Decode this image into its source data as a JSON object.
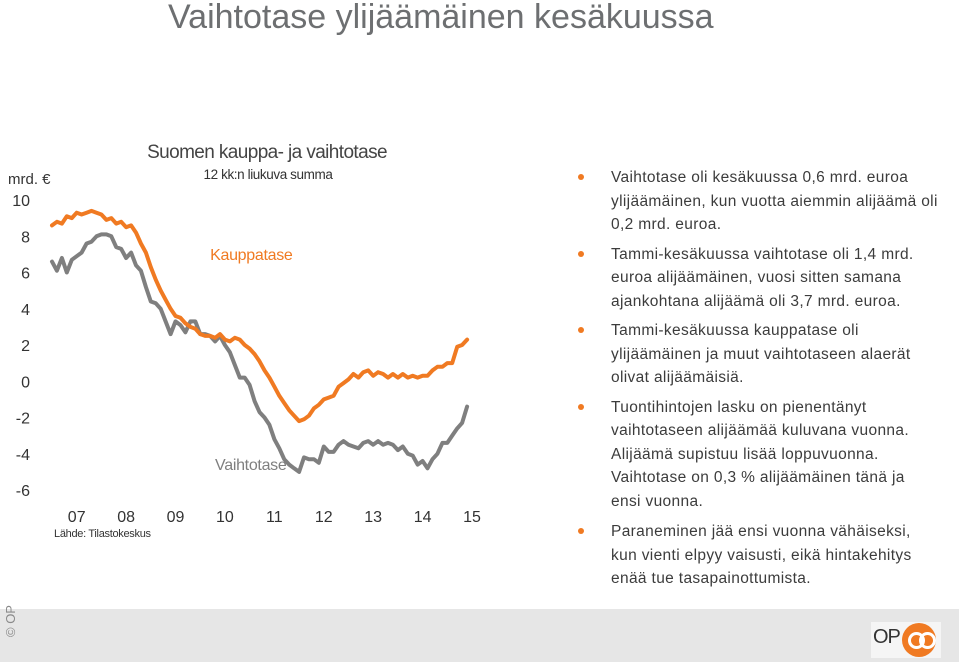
{
  "slide": {
    "title": "Vaihtotase ylijäämäinen kesäkuussa",
    "bullets": [
      "Vaihtotase oli kesäkuussa 0,6 mrd. euroa ylijäämäinen, kun vuotta aiemmin alijäämä oli 0,2 mrd. euroa.",
      "Tammi-kesäkuussa vaihtotase oli 1,4 mrd. euroa alijäämäinen, vuosi sitten samana ajankohtana alijäämä oli 3,7 mrd. euroa.",
      "Tammi-kesäkuussa kauppatase oli ylijäämäinen ja muut vaihtotaseen alaerät olivat alijäämäisiä.",
      "Tuontihintojen lasku on pienentänyt vaihtotaseen alijäämää kuluvana vuonna. Alijäämä supistuu lisää loppuvuonna. Vaihtotase on 0,3 % alijäämäinen tänä ja ensi vuonna.",
      "Paraneminen jää ensi vuonna vähäiseksi, kun vienti elpyy vaisusti, eikä hintakehitys enää tue tasapainottumista."
    ],
    "copyright": "© OP",
    "logo_text": "OP"
  },
  "colors": {
    "orange": "#f07a22",
    "gray": "#7f7f7f",
    "title": "#6d6f71",
    "footer": "#e6e6e6"
  },
  "chart_data": {
    "type": "line",
    "title": "Suomen kauppa- ja vaihtotase",
    "subtitle": "12 kk:n liukuva summa",
    "ylabel": "mrd. €",
    "ylim": [
      -6,
      10
    ],
    "yticks": [
      "10",
      "8",
      "6",
      "4",
      "2",
      "0",
      "-2",
      "-4",
      "-6"
    ],
    "xlim": [
      2007.0,
      2015.5
    ],
    "x_tick_labels": [
      "07",
      "08",
      "09",
      "10",
      "11",
      "12",
      "13",
      "14",
      "15"
    ],
    "source": "Lähde: Tilastokeskus",
    "series": [
      {
        "name": "Kauppatase",
        "color": "#f07a22",
        "x": [
          2007.0,
          2007.1,
          2007.2,
          2007.3,
          2007.4,
          2007.5,
          2007.6,
          2007.7,
          2007.8,
          2007.9,
          2008.0,
          2008.1,
          2008.2,
          2008.3,
          2008.4,
          2008.5,
          2008.6,
          2008.7,
          2008.8,
          2008.9,
          2009.0,
          2009.1,
          2009.2,
          2009.3,
          2009.4,
          2009.5,
          2009.6,
          2009.7,
          2009.8,
          2009.9,
          2010.0,
          2010.1,
          2010.2,
          2010.3,
          2010.4,
          2010.5,
          2010.6,
          2010.7,
          2010.8,
          2010.9,
          2011.0,
          2011.1,
          2011.2,
          2011.3,
          2011.4,
          2011.5,
          2011.6,
          2011.7,
          2011.8,
          2011.9,
          2012.0,
          2012.1,
          2012.2,
          2012.3,
          2012.4,
          2012.5,
          2012.6,
          2012.7,
          2012.8,
          2012.9,
          2013.0,
          2013.1,
          2013.2,
          2013.3,
          2013.4,
          2013.5,
          2013.6,
          2013.7,
          2013.8,
          2013.9,
          2014.0,
          2014.1,
          2014.2,
          2014.3,
          2014.4,
          2014.5,
          2014.6,
          2014.7,
          2014.8,
          2014.9,
          2015.0,
          2015.1,
          2015.2,
          2015.3,
          2015.4
        ],
        "values": [
          8.6,
          8.8,
          8.7,
          9.1,
          9.0,
          9.3,
          9.2,
          9.3,
          9.4,
          9.3,
          9.2,
          8.9,
          9.0,
          8.7,
          8.8,
          8.5,
          8.6,
          8.2,
          7.6,
          7.1,
          6.3,
          5.6,
          5.0,
          4.5,
          4.0,
          3.6,
          3.5,
          3.2,
          3.0,
          2.9,
          2.6,
          2.5,
          2.5,
          2.4,
          2.6,
          2.3,
          2.2,
          2.4,
          2.3,
          2.0,
          1.8,
          1.5,
          1.1,
          0.6,
          0.2,
          -0.3,
          -0.8,
          -1.2,
          -1.6,
          -1.9,
          -2.2,
          -2.1,
          -1.9,
          -1.5,
          -1.3,
          -1.0,
          -0.9,
          -0.8,
          -0.3,
          -0.1,
          0.1,
          0.4,
          0.2,
          0.5,
          0.6,
          0.3,
          0.5,
          0.4,
          0.2,
          0.4,
          0.2,
          0.4,
          0.2,
          0.3,
          0.2,
          0.3,
          0.3,
          0.6,
          0.8,
          0.8,
          1.0,
          1.0,
          1.9,
          2.0,
          2.3
        ]
      },
      {
        "name": "Vaihtotase",
        "color": "#7f7f7f",
        "x": [
          2007.0,
          2007.1,
          2007.2,
          2007.3,
          2007.4,
          2007.5,
          2007.6,
          2007.7,
          2007.8,
          2007.9,
          2008.0,
          2008.1,
          2008.2,
          2008.3,
          2008.4,
          2008.5,
          2008.6,
          2008.7,
          2008.8,
          2008.9,
          2009.0,
          2009.1,
          2009.2,
          2009.3,
          2009.4,
          2009.5,
          2009.6,
          2009.7,
          2009.8,
          2009.9,
          2010.0,
          2010.1,
          2010.2,
          2010.3,
          2010.4,
          2010.5,
          2010.6,
          2010.7,
          2010.8,
          2010.9,
          2011.0,
          2011.1,
          2011.2,
          2011.3,
          2011.4,
          2011.5,
          2011.6,
          2011.7,
          2011.8,
          2011.9,
          2012.0,
          2012.1,
          2012.2,
          2012.3,
          2012.4,
          2012.5,
          2012.6,
          2012.7,
          2012.8,
          2012.9,
          2013.0,
          2013.1,
          2013.2,
          2013.3,
          2013.4,
          2013.5,
          2013.6,
          2013.7,
          2013.8,
          2013.9,
          2014.0,
          2014.1,
          2014.2,
          2014.3,
          2014.4,
          2014.5,
          2014.6,
          2014.7,
          2014.8,
          2014.9,
          2015.0,
          2015.1,
          2015.2,
          2015.3,
          2015.4
        ],
        "values": [
          6.6,
          6.1,
          6.8,
          6.0,
          6.7,
          6.9,
          7.1,
          7.6,
          7.7,
          8.0,
          8.1,
          8.1,
          8.0,
          7.4,
          7.3,
          6.8,
          7.1,
          6.4,
          6.1,
          5.2,
          4.4,
          4.3,
          4.0,
          3.3,
          2.6,
          3.3,
          3.1,
          2.7,
          3.3,
          3.3,
          2.6,
          2.6,
          2.5,
          2.2,
          2.5,
          2.0,
          1.6,
          0.9,
          0.2,
          0.2,
          -0.2,
          -1.1,
          -1.7,
          -2.0,
          -2.4,
          -3.2,
          -3.7,
          -4.3,
          -4.6,
          -4.8,
          -5.0,
          -4.2,
          -4.3,
          -4.3,
          -4.5,
          -3.6,
          -3.9,
          -3.9,
          -3.5,
          -3.3,
          -3.5,
          -3.6,
          -3.7,
          -3.4,
          -3.3,
          -3.5,
          -3.3,
          -3.5,
          -3.4,
          -3.5,
          -3.8,
          -3.6,
          -4.0,
          -4.1,
          -4.6,
          -4.4,
          -4.8,
          -4.3,
          -4.0,
          -3.4,
          -3.4,
          -3.0,
          -2.6,
          -2.3,
          -1.4
        ]
      }
    ],
    "annotations": [
      {
        "text": "Kauppatase",
        "x": 2010.2,
        "y": 6.7,
        "color": "#f07a22"
      },
      {
        "text": "Vaihtotase",
        "x": 2010.3,
        "y": -4.9,
        "color": "#7f7f7f"
      }
    ]
  }
}
